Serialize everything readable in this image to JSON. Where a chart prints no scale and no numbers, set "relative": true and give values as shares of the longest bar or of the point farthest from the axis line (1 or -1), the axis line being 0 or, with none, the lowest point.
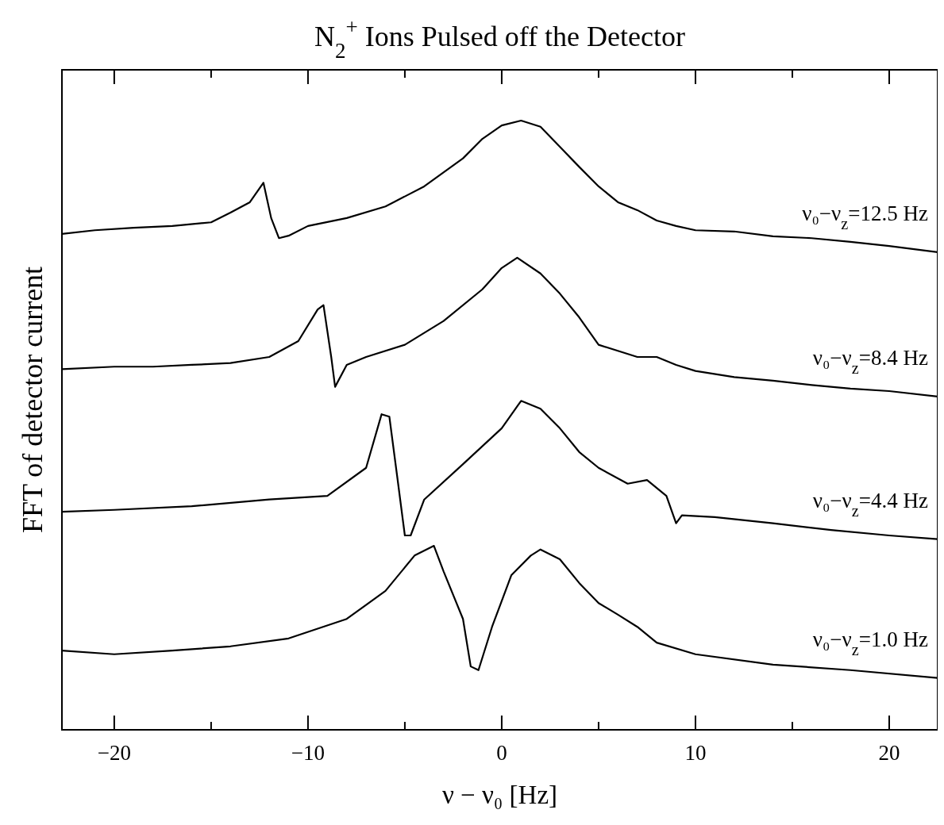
{
  "chart_data": {
    "type": "line",
    "title": "N$_{2}$$^{+}$ Ions Pulsed off the Detector",
    "xlabel": "ν − ν₀ [Hz]",
    "ylabel": "FFT of detector current",
    "relative": true,
    "legend": false,
    "grid": false,
    "marker": "none",
    "line_style": "solid",
    "xlim": [
      -22.7,
      22.5
    ],
    "xticks": [
      -20,
      {
        "value": -15,
        "label": null
      },
      -10,
      {
        "value": -5,
        "label": null
      },
      0,
      {
        "value": 5,
        "label": null
      },
      10,
      {
        "value": 15,
        "label": null
      },
      20
    ],
    "series": [
      {
        "name": "ν₀−ν$_{z}$=12.5 Hz",
        "color": "#000000",
        "x": [
          -22.7,
          -21,
          -19,
          -17,
          -15,
          -14,
          -13,
          -12.3,
          -11.9,
          -11.5,
          -11,
          -10,
          -8,
          -6,
          -4,
          -2,
          -1,
          0,
          1,
          2,
          3,
          4,
          5,
          6,
          7,
          8,
          9,
          10,
          12,
          14,
          16,
          18,
          20,
          22.5
        ],
        "values": [
          0.814,
          0.82,
          0.824,
          0.827,
          0.833,
          0.849,
          0.866,
          0.898,
          0.84,
          0.807,
          0.811,
          0.827,
          0.84,
          0.859,
          0.892,
          0.938,
          0.97,
          0.992,
          1,
          0.99,
          0.957,
          0.924,
          0.892,
          0.866,
          0.853,
          0.836,
          0.827,
          0.82,
          0.818,
          0.81,
          0.807,
          0.801,
          0.794,
          0.784
        ]
      },
      {
        "name": "ν₀−ν$_{z}$=8.4 Hz",
        "color": "#000000",
        "x": [
          -22.7,
          -20,
          -18,
          -16,
          -14,
          -12,
          -10.5,
          -9.5,
          -9.2,
          -8.8,
          -8.6,
          -8,
          -7,
          -5,
          -3,
          -1,
          0,
          0.8,
          2,
          3,
          4,
          5,
          7,
          8,
          9,
          10,
          12,
          14,
          16,
          18,
          20,
          22.5
        ],
        "values": [
          0.592,
          0.596,
          0.596,
          0.599,
          0.602,
          0.612,
          0.638,
          0.69,
          0.697,
          0.612,
          0.563,
          0.599,
          0.612,
          0.632,
          0.671,
          0.723,
          0.758,
          0.775,
          0.749,
          0.716,
          0.677,
          0.632,
          0.612,
          0.612,
          0.599,
          0.589,
          0.579,
          0.573,
          0.566,
          0.56,
          0.556,
          0.547
        ]
      },
      {
        "name": "ν₀−ν$_{z}$=4.4 Hz",
        "color": "#000000",
        "x": [
          -22.7,
          -20,
          -16,
          -12,
          -9,
          -7,
          -6.2,
          -5.8,
          -5.4,
          -5,
          -4.7,
          -4,
          -2,
          0,
          1,
          2,
          3,
          4,
          5,
          6.5,
          7.5,
          8.5,
          9,
          9.3,
          11,
          14,
          17,
          20,
          22.5
        ],
        "values": [
          0.358,
          0.361,
          0.367,
          0.378,
          0.384,
          0.43,
          0.518,
          0.514,
          0.417,
          0.319,
          0.319,
          0.378,
          0.436,
          0.495,
          0.54,
          0.527,
          0.495,
          0.456,
          0.43,
          0.404,
          0.41,
          0.384,
          0.339,
          0.352,
          0.349,
          0.339,
          0.328,
          0.319,
          0.313
        ]
      },
      {
        "name": "ν₀−ν$_{z}$=1.0 Hz",
        "color": "#000000",
        "x": [
          -22.7,
          -20,
          -17,
          -14,
          -11,
          -8,
          -6,
          -4.5,
          -3.5,
          -3,
          -2,
          -1.6,
          -1.2,
          -0.5,
          0.5,
          1.5,
          2,
          3,
          4,
          5,
          6,
          7,
          8,
          10,
          14,
          18,
          22.5
        ],
        "values": [
          0.13,
          0.124,
          0.13,
          0.137,
          0.15,
          0.182,
          0.228,
          0.286,
          0.302,
          0.26,
          0.182,
          0.104,
          0.098,
          0.169,
          0.254,
          0.286,
          0.296,
          0.28,
          0.241,
          0.208,
          0.189,
          0.169,
          0.143,
          0.124,
          0.107,
          0.098,
          0.085
        ]
      }
    ]
  }
}
